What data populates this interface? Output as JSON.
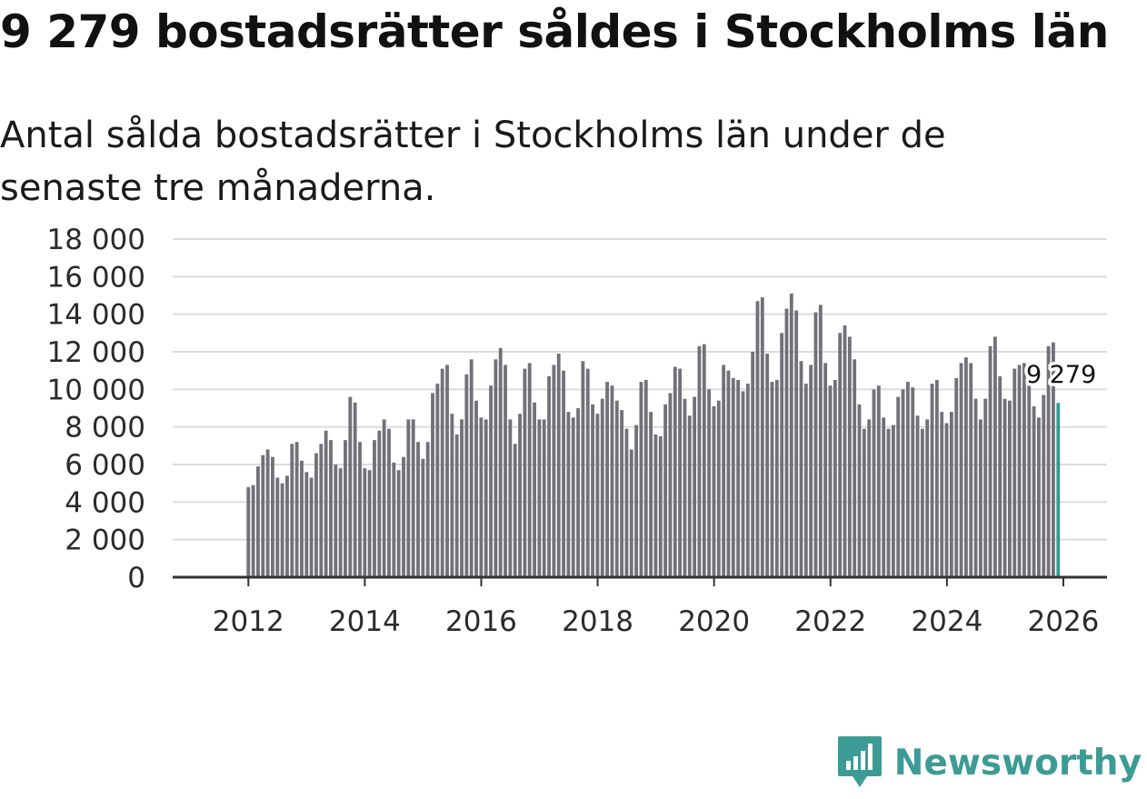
{
  "header": {
    "title": "9 279 bostadsrätter såldes i Stockholms län",
    "subtitle": "Antal sålda bostadsrätter i Stockholms län under de senaste tre månaderna."
  },
  "brand": {
    "name": "Newsworthy",
    "color": "#3d9b95",
    "icon": "newsworthy-logo-icon"
  },
  "colors": {
    "bar": "#727178",
    "highlight": "#2a9d95",
    "grid": "#dcdcdc",
    "axis": "#333333"
  },
  "chart_data": {
    "type": "bar",
    "title": "9 279 bostadsrätter såldes i Stockholms län",
    "subtitle": "Antal sålda bostadsrätter i Stockholms län under de senaste tre månaderna.",
    "xlabel": "",
    "ylabel": "",
    "ylim": [
      0,
      18000
    ],
    "yticks": [
      0,
      2000,
      4000,
      6000,
      8000,
      10000,
      12000,
      14000,
      16000,
      18000
    ],
    "ytick_labels": [
      "0",
      "2 000",
      "4 000",
      "6 000",
      "8 000",
      "10 000",
      "12 000",
      "14 000",
      "16 000",
      "18 000"
    ],
    "xticks": [
      2012,
      2014,
      2016,
      2018,
      2020,
      2022,
      2024,
      2026
    ],
    "xtick_labels": [
      "2012",
      "2014",
      "2016",
      "2018",
      "2020",
      "2022",
      "2024",
      "2026"
    ],
    "xlim": [
      2010.7,
      2026.75
    ],
    "x_start": 2012.0,
    "step": 0.0833,
    "grid": true,
    "highlight_last": true,
    "last_value_label": "9 279",
    "values": [
      4800,
      4900,
      5900,
      6500,
      6800,
      6400,
      5300,
      5000,
      5400,
      7100,
      7200,
      6200,
      5600,
      5300,
      6600,
      7100,
      7800,
      7300,
      6000,
      5800,
      7300,
      9600,
      9300,
      7200,
      5800,
      5700,
      7300,
      7800,
      8400,
      7900,
      6100,
      5700,
      6400,
      8400,
      8400,
      7200,
      6300,
      7200,
      9800,
      10300,
      11100,
      11300,
      8700,
      7600,
      8400,
      10800,
      11600,
      9400,
      8500,
      8400,
      10200,
      11600,
      12200,
      11300,
      8400,
      7100,
      8700,
      11100,
      11400,
      9300,
      8400,
      8400,
      10700,
      11300,
      11900,
      11000,
      8800,
      8500,
      9000,
      11500,
      11100,
      9200,
      8700,
      9500,
      10400,
      10200,
      9400,
      8900,
      7900,
      6800,
      8100,
      10400,
      10500,
      8800,
      7600,
      7500,
      9200,
      9800,
      11200,
      11100,
      9500,
      8600,
      9600,
      12300,
      12400,
      10000,
      9100,
      9400,
      11300,
      11000,
      10600,
      10500,
      9900,
      10300,
      12000,
      14700,
      14900,
      11900,
      10400,
      10500,
      13000,
      14300,
      15100,
      14200,
      11500,
      10300,
      11300,
      14100,
      14500,
      11400,
      10200,
      10500,
      13000,
      13400,
      12800,
      11600,
      9200,
      7900,
      8400,
      10000,
      10200,
      8500,
      7900,
      8100,
      9600,
      10000,
      10400,
      10100,
      8600,
      7900,
      8400,
      10300,
      10500,
      8800,
      8200,
      8800,
      10600,
      11400,
      11700,
      11400,
      9500,
      8400,
      9500,
      12300,
      12800,
      10700,
      9500,
      9400,
      11100,
      11300,
      11400,
      10600,
      9100,
      8500,
      9700,
      12300,
      12500,
      9279
    ]
  }
}
